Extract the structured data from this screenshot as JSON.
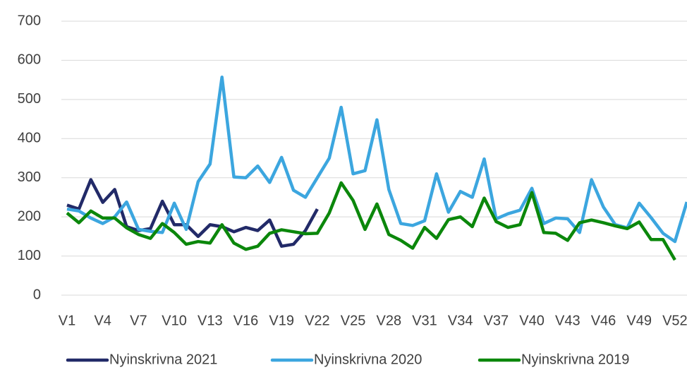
{
  "chart_data": {
    "type": "line",
    "categories": [
      "V1",
      null,
      null,
      "V4",
      null,
      null,
      "V7",
      null,
      null,
      "V10",
      null,
      null,
      "V13",
      null,
      null,
      "V16",
      null,
      null,
      "V19",
      null,
      null,
      "V22",
      null,
      null,
      "V25",
      null,
      null,
      "V28",
      null,
      null,
      "V31",
      null,
      null,
      "V34",
      null,
      null,
      "V37",
      null,
      null,
      "V40",
      null,
      null,
      "V43",
      null,
      null,
      "V46",
      null,
      null,
      "V49",
      null,
      null,
      "V52",
      null
    ],
    "series": [
      {
        "name": "Nyinskrivna 2021",
        "color": "#222a68",
        "values": [
          230,
          220,
          295,
          237,
          270,
          175,
          165,
          170,
          240,
          180,
          180,
          150,
          180,
          175,
          162,
          173,
          165,
          192,
          125,
          130,
          165,
          220,
          null,
          null,
          null,
          null,
          null,
          null,
          null,
          null,
          null,
          null,
          null,
          null,
          null,
          null,
          null,
          null,
          null,
          null,
          null,
          null,
          null,
          null,
          null,
          null,
          null,
          null,
          null,
          null,
          null,
          null,
          null
        ]
      },
      {
        "name": "Nyinskrivna 2020",
        "color": "#3ca6df",
        "values": [
          220,
          215,
          197,
          183,
          200,
          238,
          168,
          163,
          160,
          235,
          168,
          290,
          335,
          557,
          302,
          300,
          330,
          288,
          352,
          268,
          250,
          300,
          350,
          480,
          310,
          318,
          448,
          270,
          183,
          178,
          190,
          310,
          212,
          265,
          250,
          348,
          195,
          208,
          217,
          273,
          183,
          197,
          195,
          160,
          295,
          225,
          180,
          172,
          235,
          198,
          158,
          137,
          238
        ]
      },
      {
        "name": "Nyinskrivna 2019",
        "color": "#0b870b",
        "values": [
          210,
          185,
          215,
          197,
          197,
          172,
          155,
          145,
          183,
          160,
          130,
          137,
          133,
          180,
          133,
          117,
          125,
          158,
          167,
          162,
          157,
          158,
          210,
          287,
          242,
          168,
          233,
          155,
          140,
          120,
          173,
          145,
          193,
          200,
          175,
          248,
          188,
          173,
          180,
          262,
          160,
          158,
          140,
          185,
          192,
          185,
          177,
          170,
          187,
          142,
          142,
          90,
          null
        ]
      }
    ],
    "ylim": [
      0,
      700
    ],
    "yticks": [
      0,
      100,
      200,
      300,
      400,
      500,
      600,
      700
    ],
    "grid": true,
    "legend": "bottom"
  }
}
